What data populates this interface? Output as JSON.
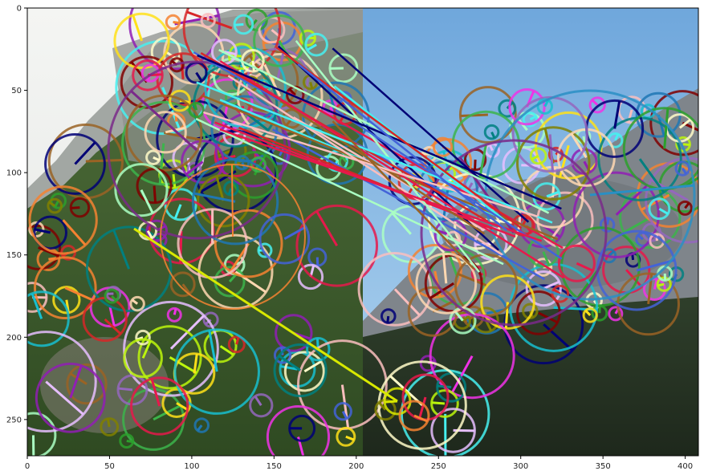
{
  "figure": {
    "image_description_visible": "two side-by-side photos of a rocky forested mountain with feature keypoint circles and match lines",
    "x_ticks": [
      "0",
      "50",
      "100",
      "150",
      "200",
      "250",
      "300",
      "350",
      "400"
    ],
    "y_ticks": [
      "0",
      "50",
      "100",
      "150",
      "200",
      "250"
    ],
    "x_range": [
      0,
      408
    ],
    "y_range": [
      0,
      272
    ],
    "colors": {
      "left_sky": "#eef0ee",
      "left_rock": "#9aa09c",
      "left_forest": "#3f5e2c",
      "right_sky": "#8fc0e8",
      "right_rock": "#7f8489",
      "right_forest": "#2b3a28",
      "axis": "#000000"
    }
  }
}
